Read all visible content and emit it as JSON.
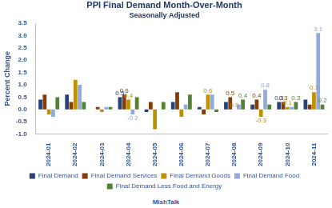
{
  "chart_data": {
    "type": "bar",
    "title": "PPI Final Demand Month-Over-Month",
    "subtitle": "Seasonally Adjusted",
    "y_label": "Percent Change",
    "annotations": [
      "MishTalk"
    ],
    "categories": [
      "2024-01",
      "2024-02",
      "2024-03",
      "2024-04",
      "2024-05",
      "2024-06",
      "2024-07",
      "2024-08",
      "2024-09",
      "2024-10",
      "2024-11"
    ],
    "series": [
      {
        "name": "Final Demand",
        "color": "#264478",
        "values": [
          0.4,
          0.6,
          0.0,
          0.5,
          -0.1,
          0.3,
          0.1,
          0.3,
          0.2,
          0.3,
          0.4
        ],
        "value_labels": [
          null,
          null,
          null,
          "0.5",
          null,
          null,
          null,
          null,
          null,
          "0.3",
          null
        ]
      },
      {
        "name": "Final Demand Services",
        "color": "#843c0c",
        "values": [
          0.6,
          0.3,
          0.1,
          0.6,
          0.3,
          0.7,
          -0.2,
          0.5,
          0.4,
          0.3,
          0.2
        ],
        "value_labels": [
          null,
          null,
          null,
          "0.6",
          null,
          null,
          null,
          "0.5",
          "0.4",
          "0.3",
          null
        ]
      },
      {
        "name": "Final Demand Goods",
        "color": "#bf9000",
        "values": [
          -0.2,
          1.2,
          -0.1,
          0.4,
          -0.8,
          -0.3,
          0.6,
          0.0,
          -0.3,
          0.1,
          0.7
        ],
        "value_labels": [
          null,
          null,
          null,
          "0.4",
          null,
          null,
          "0.6",
          "0.0",
          "-0.3",
          "0.1",
          "0.7"
        ]
      },
      {
        "name": "Final Demand Food",
        "color": "#8faadc",
        "values": [
          -0.3,
          1.0,
          0.1,
          -0.2,
          0.0,
          0.2,
          0.6,
          0.2,
          0.8,
          0.1,
          3.1
        ],
        "value_labels": [
          null,
          null,
          null,
          "-0.2",
          null,
          null,
          null,
          null,
          "0.8",
          null,
          "3.1"
        ]
      },
      {
        "name": "Final Demand Less Food and Energy",
        "color": "#548235",
        "values": [
          0.5,
          0.3,
          0.1,
          0.5,
          0.3,
          0.6,
          -0.1,
          0.4,
          0.2,
          0.3,
          0.2
        ],
        "value_labels": [
          null,
          null,
          null,
          null,
          null,
          null,
          null,
          "0.4",
          null,
          "0.3",
          "0.2"
        ]
      }
    ],
    "ylim": [
      -1.0,
      3.5
    ],
    "yticks": [
      {
        "value": -1,
        "label": "-1.0"
      },
      -0.5,
      {
        "value": 0,
        "label": "0.0"
      },
      0.5,
      {
        "value": 1,
        "label": "1.0"
      },
      1.5,
      {
        "value": 2,
        "label": "2.0"
      },
      2.5,
      {
        "value": 3,
        "label": "3.0"
      },
      3.5
    ],
    "grid": false,
    "legend": "bottom",
    "data_labels": true
  }
}
